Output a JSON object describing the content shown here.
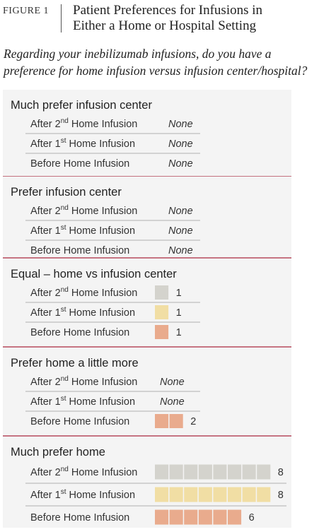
{
  "figure_label": "FIGURE 1",
  "figure_title_line1": "Patient Preferences for Infusions in",
  "figure_title_line2": "Either a Home or Hospital Setting",
  "question": "Regarding your inebilizumab infusions, do you have a preference for home infusion versus infusion center/hospital?",
  "none_text": "None",
  "colors": {
    "after_2nd": "#d4d3cd",
    "after_1st": "#f1dea4",
    "before": "#e9ab8d",
    "section_rule": "#a8253a",
    "section_bg": "#f4f4f4"
  },
  "chart_data": {
    "type": "bar",
    "orientation": "horizontal",
    "unit_note": "each square = 1 patient",
    "series": [
      {
        "name": "After 2nd Home Infusion",
        "values": [
          0,
          0,
          1,
          0,
          8
        ]
      },
      {
        "name": "After 1st Home Infusion",
        "values": [
          0,
          0,
          1,
          0,
          8
        ]
      },
      {
        "name": "Before Home Infusion",
        "values": [
          0,
          0,
          1,
          2,
          6
        ]
      }
    ],
    "categories": [
      "Much prefer infusion center",
      "Prefer infusion center",
      "Equal – home vs infusion center",
      "Prefer home a little more",
      "Much prefer home"
    ],
    "sections": [
      {
        "title": "Much prefer infusion center",
        "rows": [
          {
            "label": "After 2",
            "sup": "nd",
            "label_rest": " Home Infusion",
            "series": "after_2nd",
            "value": 0
          },
          {
            "label": "After 1",
            "sup": "st",
            "label_rest": " Home Infusion",
            "series": "after_1st",
            "value": 0
          },
          {
            "label": "Before Home Infusion",
            "sup": "",
            "label_rest": "",
            "series": "before",
            "value": 0
          }
        ]
      },
      {
        "title": "Prefer infusion center",
        "rows": [
          {
            "label": "After 2",
            "sup": "nd",
            "label_rest": " Home Infusion",
            "series": "after_2nd",
            "value": 0
          },
          {
            "label": "After 1",
            "sup": "st",
            "label_rest": " Home Infusion",
            "series": "after_1st",
            "value": 0
          },
          {
            "label": "Before Home Infusion",
            "sup": "",
            "label_rest": "",
            "series": "before",
            "value": 0
          }
        ]
      },
      {
        "title": "Equal – home vs infusion center",
        "rows": [
          {
            "label": "After 2",
            "sup": "nd",
            "label_rest": " Home Infusion",
            "series": "after_2nd",
            "value": 1
          },
          {
            "label": "After 1",
            "sup": "st",
            "label_rest": " Home Infusion",
            "series": "after_1st",
            "value": 1
          },
          {
            "label": "Before Home Infusion",
            "sup": "",
            "label_rest": "",
            "series": "before",
            "value": 1
          }
        ]
      },
      {
        "title": "Prefer home a little more",
        "rows": [
          {
            "label": "After 2",
            "sup": "nd",
            "label_rest": " Home Infusion",
            "series": "after_2nd",
            "value": 0
          },
          {
            "label": "After 1",
            "sup": "st",
            "label_rest": " Home Infusion",
            "series": "after_1st",
            "value": 0
          },
          {
            "label": "Before Home Infusion",
            "sup": "",
            "label_rest": "",
            "series": "before",
            "value": 2
          }
        ]
      },
      {
        "title": "Much prefer home",
        "rows": [
          {
            "label": "After 2",
            "sup": "nd",
            "label_rest": " Home Infusion",
            "series": "after_2nd",
            "value": 8
          },
          {
            "label": "After 1",
            "sup": "st",
            "label_rest": " Home Infusion",
            "series": "after_1st",
            "value": 8
          },
          {
            "label": "Before Home Infusion",
            "sup": "",
            "label_rest": "",
            "series": "before",
            "value": 6
          }
        ]
      }
    ]
  }
}
